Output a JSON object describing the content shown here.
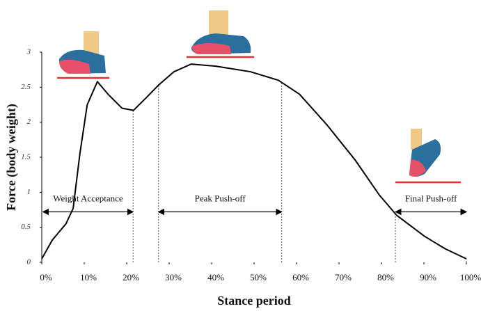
{
  "chart_data": {
    "type": "line",
    "x_label": "Stance period",
    "y_label": "Force (body weight)",
    "x": [
      0,
      2.5,
      5.7,
      7.4,
      9.0,
      10.7,
      13.1,
      15.6,
      18.9,
      21.6,
      24.6,
      27.5,
      31.1,
      35.2,
      41,
      49.2,
      55.7,
      60.7,
      67.2,
      73.8,
      79.5,
      83.6,
      90.2,
      95.1,
      100
    ],
    "values": [
      0.05,
      0.32,
      0.55,
      0.77,
      1.56,
      2.25,
      2.58,
      2.4,
      2.2,
      2.17,
      2.35,
      2.53,
      2.72,
      2.83,
      2.8,
      2.72,
      2.6,
      2.4,
      1.96,
      1.46,
      0.96,
      0.67,
      0.37,
      0.19,
      0.05
    ],
    "color": "#000000",
    "xlim": [
      0,
      100
    ],
    "ylim": [
      0,
      3
    ],
    "xticks": [
      {
        "value": 0,
        "label": "0%"
      },
      {
        "value": 10,
        "label": "10%"
      },
      {
        "value": 20,
        "label": "20%"
      },
      {
        "value": 30,
        "label": "30%"
      },
      {
        "value": 40,
        "label": "40%"
      },
      {
        "value": 50,
        "label": "50%"
      },
      {
        "value": 60,
        "label": "60%"
      },
      {
        "value": 70,
        "label": "70%"
      },
      {
        "value": 80,
        "label": "80%"
      },
      {
        "value": 90,
        "label": "90%"
      },
      {
        "value": 100,
        "label": "100%"
      }
    ],
    "yticks": [
      0,
      0.5,
      1,
      1.5,
      2,
      2.5,
      3
    ],
    "grid": false,
    "phases": [
      {
        "label": "Weight Acceptance",
        "start": 0.3,
        "end": 21.5
      },
      {
        "label": "Peak Push-off",
        "start": 27.5,
        "end": 56.5
      },
      {
        "label": "Final Push-off",
        "start": 83.3,
        "end": 100
      }
    ]
  }
}
